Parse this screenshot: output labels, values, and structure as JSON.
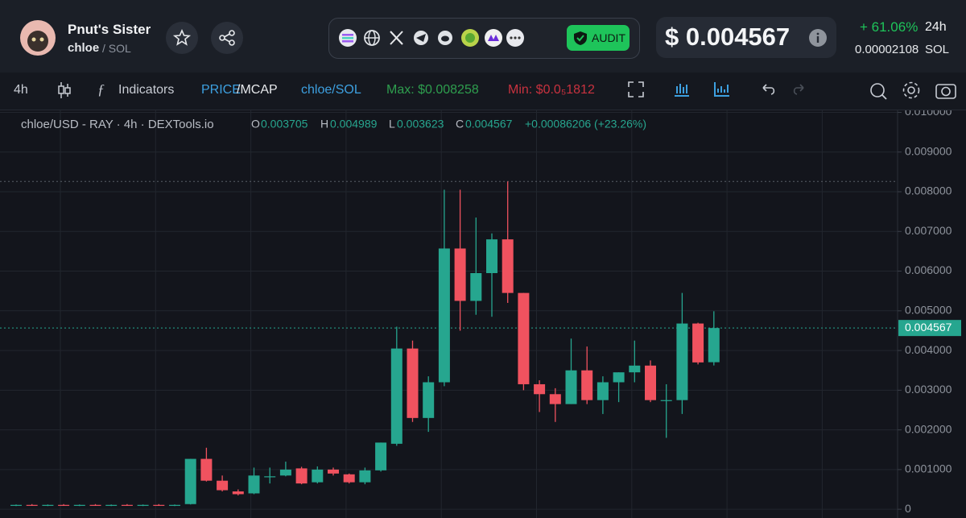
{
  "header": {
    "name": "Pnut's Sister",
    "symbol": "chloe",
    "pair": "/ SOL",
    "audit": "AUDIT",
    "price": "$ 0.004567",
    "change": "+ 61.06%",
    "period": "24h",
    "price_sol": "0.00002108",
    "sol": "SOL"
  },
  "toolbar": {
    "interval": "4h",
    "indicators": "Indicators",
    "price": "PRICE",
    "mcap": "/MCAP",
    "pair": "chloe/SOL",
    "max": "Max: $0.008258",
    "min": "Min: $0.0₅1812"
  },
  "legend": {
    "title": "chloe/USD - RAY · 4h · DEXTools.io",
    "o": "O",
    "o_value": "0.003705",
    "h": "H",
    "h_value": "0.004989",
    "l": "L",
    "l_value": "0.003623",
    "c": "C",
    "c_value": "0.004567",
    "change": "+0.00086206 (+23.26%)"
  },
  "chart_data": {
    "type": "candlestick",
    "up_color": "#26a68f",
    "down_color": "#f0525f",
    "grid": true,
    "ylim": [
      -0.00022,
      0.01005
    ],
    "yticks": [
      0,
      {
        "value": 0.001,
        "label": "0.001000"
      },
      {
        "value": 0.002,
        "label": "0.002000"
      },
      {
        "value": 0.003,
        "label": "0.003000"
      },
      {
        "value": 0.004,
        "label": "0.004000"
      },
      {
        "value": 0.005,
        "label": "0.005000"
      },
      {
        "value": 0.006,
        "label": "0.006000"
      },
      {
        "value": 0.007,
        "label": "0.007000"
      },
      {
        "value": 0.008,
        "label": "0.008000"
      },
      {
        "value": 0.009,
        "label": "0.009000"
      },
      {
        "value": 0.01,
        "label": "0.010000"
      }
    ],
    "max_line": 0.008258,
    "last_price": {
      "value": 0.004567,
      "label": "0.004567"
    },
    "open": [
      0.0001,
      0.00011,
      0.0001,
      0.00011,
      0.0001,
      0.00011,
      0.0001,
      0.00011,
      0.0001,
      0.00011,
      0.0001,
      0.00013,
      0.00127,
      0.00072,
      0.00045,
      0.0004,
      0.00083,
      0.00085,
      0.00103,
      0.00068,
      0.001,
      0.00088,
      0.00068,
      0.00098,
      0.00165,
      0.00405,
      0.0023,
      0.0032,
      0.00657,
      0.00525,
      0.00595,
      0.0068,
      0.00545,
      0.00315,
      0.0029,
      0.00265,
      0.0035,
      0.00275,
      0.0032,
      0.00345,
      0.00362,
      0.00275,
      0.00275,
      0.00468,
      0.003705
    ],
    "high": [
      0.00012,
      0.00013,
      0.00012,
      0.00013,
      0.00012,
      0.00013,
      0.00012,
      0.00013,
      0.00012,
      0.00013,
      0.00012,
      0.00127,
      0.00155,
      0.00085,
      0.0005,
      0.00105,
      0.00105,
      0.0012,
      0.00107,
      0.00108,
      0.00105,
      0.0009,
      0.00105,
      0.00168,
      0.0046,
      0.00425,
      0.00335,
      0.00805,
      0.00805,
      0.00735,
      0.00695,
      0.008258,
      0.00545,
      0.00325,
      0.00305,
      0.0043,
      0.0041,
      0.00335,
      0.00345,
      0.00425,
      0.00375,
      0.00315,
      0.00545,
      0.0047,
      0.004989
    ],
    "low": [
      8e-05,
      9e-05,
      8e-05,
      9e-05,
      8e-05,
      9e-05,
      8e-05,
      9e-05,
      8e-05,
      9e-05,
      8e-05,
      0.00012,
      0.0007,
      0.00045,
      0.00035,
      0.00038,
      0.00065,
      0.00083,
      0.00063,
      0.00065,
      0.00085,
      0.00065,
      0.00063,
      0.00095,
      0.0016,
      0.0022,
      0.00195,
      0.0031,
      0.0045,
      0.0049,
      0.00485,
      0.0052,
      0.003,
      0.00245,
      0.0022,
      0.00265,
      0.00265,
      0.0024,
      0.0027,
      0.0032,
      0.0027,
      0.0018,
      0.0024,
      0.00365,
      0.003623
    ],
    "close": [
      0.00011,
      0.0001,
      0.00011,
      0.0001,
      0.00011,
      0.0001,
      0.00011,
      0.0001,
      0.00011,
      0.0001,
      0.00011,
      0.00127,
      0.00072,
      0.00048,
      0.00038,
      0.00085,
      0.00083,
      0.001,
      0.00065,
      0.001,
      0.0009,
      0.00068,
      0.00098,
      0.00168,
      0.00405,
      0.0023,
      0.0032,
      0.00657,
      0.00525,
      0.00595,
      0.0068,
      0.00545,
      0.00315,
      0.0029,
      0.00265,
      0.0035,
      0.00275,
      0.0032,
      0.00345,
      0.00362,
      0.00275,
      0.00275,
      0.00468,
      0.0037,
      0.004567
    ]
  }
}
